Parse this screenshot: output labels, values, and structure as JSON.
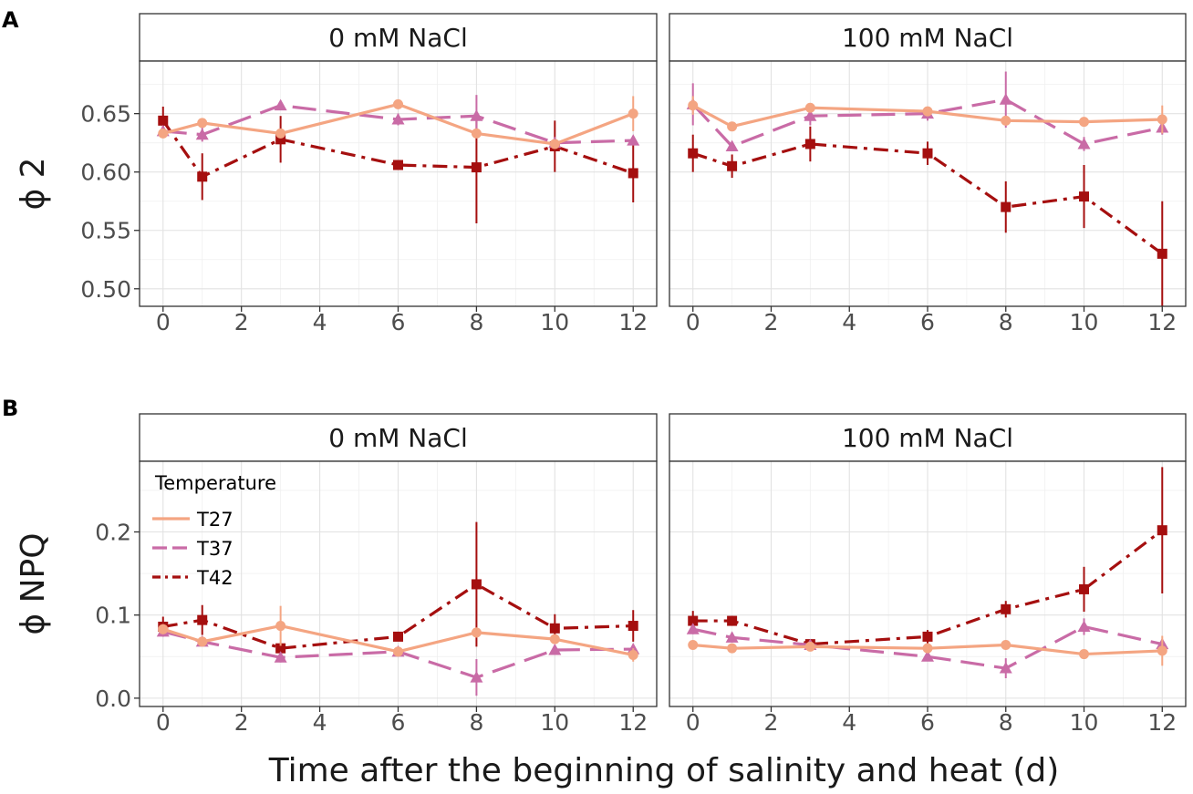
{
  "chart_data": {
    "type": "line",
    "xlabel": "Time after the beginning of salinity and heat (d)",
    "x": [
      0,
      1,
      3,
      6,
      8,
      10,
      12
    ],
    "xticks": [
      "0",
      "2",
      "4",
      "6",
      "8",
      "10",
      "12"
    ],
    "xlim": [
      -0.6,
      12.6
    ],
    "legend": {
      "title": "Temperature",
      "placement": "inside-top-left of panel B 0 mM NaCl",
      "entries": [
        "T27",
        "T37",
        "T42"
      ]
    },
    "series_styles": [
      {
        "name": "T27",
        "color": "#F4A582",
        "dash": "solid",
        "marker": "circle"
      },
      {
        "name": "T37",
        "color": "#C96BA6",
        "dash": "long-dash",
        "marker": "triangle"
      },
      {
        "name": "T42",
        "color": "#A50F0F",
        "dash": "dot-dash",
        "marker": "square"
      }
    ],
    "panels": [
      {
        "letter": "A",
        "ylabel": "ϕ 2",
        "ylim": [
          0.485,
          0.695
        ],
        "yticks": [
          0.5,
          0.55,
          0.6,
          0.65
        ],
        "ytick_labels": [
          "0.50",
          "0.55",
          "0.60",
          "0.65"
        ],
        "facets": [
          {
            "title": "0 mM NaCl",
            "series": [
              {
                "name": "T27",
                "values": [
                  0.633,
                  0.642,
                  0.633,
                  0.658,
                  0.633,
                  0.624,
                  0.65
                ],
                "err": [
                  0.003,
                  0.004,
                  0.003,
                  0.004,
                  0.004,
                  0.004,
                  0.015
                ]
              },
              {
                "name": "T37",
                "values": [
                  0.635,
                  0.632,
                  0.657,
                  0.645,
                  0.648,
                  0.625,
                  0.627
                ],
                "err": [
                  0.004,
                  0.006,
                  0.004,
                  0.005,
                  0.018,
                  0.004,
                  0.004
                ]
              },
              {
                "name": "T42",
                "values": [
                  0.644,
                  0.596,
                  0.628,
                  0.606,
                  0.604,
                  0.622,
                  0.599
                ],
                "err": [
                  0.012,
                  0.02,
                  0.02,
                  0.004,
                  0.048,
                  0.022,
                  0.025
                ]
              }
            ]
          },
          {
            "title": "100 mM NaCl",
            "series": [
              {
                "name": "T27",
                "values": [
                  0.657,
                  0.639,
                  0.655,
                  0.652,
                  0.644,
                  0.643,
                  0.645
                ],
                "err": [
                  0.008,
                  0.004,
                  0.003,
                  0.003,
                  0.004,
                  0.004,
                  0.012
                ]
              },
              {
                "name": "T37",
                "values": [
                  0.658,
                  0.622,
                  0.648,
                  0.65,
                  0.662,
                  0.624,
                  0.638
                ],
                "err": [
                  0.018,
                  0.004,
                  0.008,
                  0.006,
                  0.024,
                  0.006,
                  0.006
                ]
              },
              {
                "name": "T42",
                "values": [
                  0.616,
                  0.605,
                  0.624,
                  0.616,
                  0.57,
                  0.579,
                  0.53
                ],
                "err": [
                  0.016,
                  0.01,
                  0.015,
                  0.01,
                  0.022,
                  0.027,
                  0.045
                ]
              }
            ]
          }
        ]
      },
      {
        "letter": "B",
        "ylabel": "ϕ NPQ",
        "ylim": [
          -0.01,
          0.285
        ],
        "yticks": [
          0.0,
          0.1,
          0.2
        ],
        "ytick_labels": [
          "0.0",
          "0.1",
          "0.2"
        ],
        "facets": [
          {
            "title": "0 mM NaCl",
            "series": [
              {
                "name": "T27",
                "values": [
                  0.083,
                  0.068,
                  0.087,
                  0.056,
                  0.079,
                  0.071,
                  0.052
                ],
                "err": [
                  0.006,
                  0.004,
                  0.024,
                  0.004,
                  0.006,
                  0.004,
                  0.008
                ]
              },
              {
                "name": "T37",
                "values": [
                  0.08,
                  0.068,
                  0.049,
                  0.056,
                  0.025,
                  0.058,
                  0.059
                ],
                "err": [
                  0.006,
                  0.004,
                  0.006,
                  0.006,
                  0.022,
                  0.006,
                  0.006
                ]
              },
              {
                "name": "T42",
                "values": [
                  0.086,
                  0.094,
                  0.06,
                  0.074,
                  0.137,
                  0.084,
                  0.087
                ],
                "err": [
                  0.012,
                  0.018,
                  0.006,
                  0.004,
                  0.075,
                  0.017,
                  0.019
                ]
              }
            ]
          },
          {
            "title": "100 mM NaCl",
            "series": [
              {
                "name": "T27",
                "values": [
                  0.064,
                  0.06,
                  0.062,
                  0.06,
                  0.064,
                  0.053,
                  0.057
                ],
                "err": [
                  0.004,
                  0.004,
                  0.003,
                  0.003,
                  0.004,
                  0.003,
                  0.018
                ]
              },
              {
                "name": "T37",
                "values": [
                  0.083,
                  0.073,
                  0.064,
                  0.05,
                  0.036,
                  0.086,
                  0.065
                ],
                "err": [
                  0.006,
                  0.006,
                  0.004,
                  0.004,
                  0.012,
                  0.01,
                  0.006
                ]
              },
              {
                "name": "T42",
                "values": [
                  0.093,
                  0.093,
                  0.065,
                  0.074,
                  0.107,
                  0.131,
                  0.202
                ],
                "err": [
                  0.012,
                  0.006,
                  0.006,
                  0.008,
                  0.01,
                  0.027,
                  0.076
                ]
              }
            ]
          }
        ]
      }
    ]
  }
}
